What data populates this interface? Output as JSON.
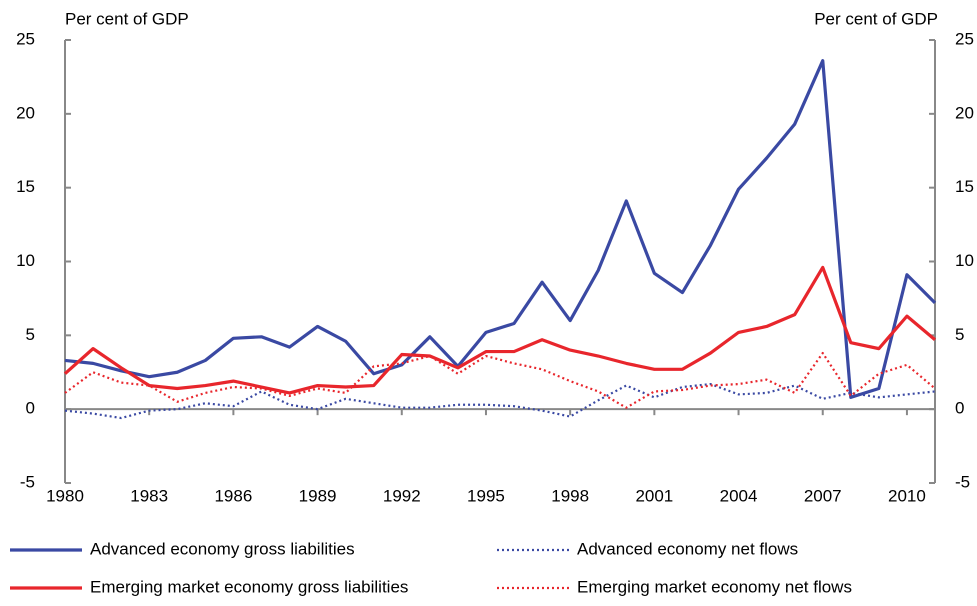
{
  "chart_data": {
    "type": "line",
    "y_label": "Per cent of GDP",
    "y2_label": "Per cent of GDP",
    "x": [
      1980,
      1981,
      1982,
      1983,
      1984,
      1985,
      1986,
      1987,
      1988,
      1989,
      1990,
      1991,
      1992,
      1993,
      1994,
      1995,
      1996,
      1997,
      1998,
      1999,
      2000,
      2001,
      2002,
      2003,
      2004,
      2005,
      2006,
      2007,
      2008,
      2009,
      2010,
      2011
    ],
    "xlim": [
      1980,
      2011
    ],
    "xticks": [
      1980,
      1983,
      1986,
      1989,
      1992,
      1995,
      1998,
      2001,
      2004,
      2007,
      2010
    ],
    "ylim": [
      -5,
      25
    ],
    "yticks": [
      -5,
      0,
      5,
      10,
      15,
      20,
      25
    ],
    "y2lim": [
      -5,
      25
    ],
    "y2ticks": [
      -5,
      0,
      5,
      10,
      15,
      20,
      25
    ],
    "grid": false,
    "legend": "bottom",
    "series": [
      {
        "name": "Advanced economy gross liabilities",
        "color": "#3a49a3",
        "style": "solid",
        "values": [
          3.3,
          3.1,
          2.6,
          2.2,
          2.5,
          3.3,
          4.8,
          4.9,
          4.2,
          5.6,
          4.6,
          2.4,
          3.0,
          4.9,
          2.9,
          5.2,
          5.8,
          8.6,
          6.0,
          9.4,
          14.1,
          9.2,
          7.9,
          11.1,
          14.9,
          17.0,
          19.3,
          23.6,
          0.8,
          1.4,
          9.1,
          7.2
        ]
      },
      {
        "name": "Advanced economy net flows",
        "color": "#3a49a3",
        "style": "dotted",
        "values": [
          -0.1,
          -0.3,
          -0.6,
          -0.1,
          0.0,
          0.4,
          0.2,
          1.2,
          0.3,
          0.0,
          0.7,
          0.4,
          0.1,
          0.1,
          0.3,
          0.3,
          0.2,
          -0.1,
          -0.5,
          0.6,
          1.6,
          0.8,
          1.5,
          1.7,
          1.0,
          1.1,
          1.6,
          0.7,
          1.1,
          0.8,
          1.0,
          1.2
        ]
      },
      {
        "name": "Emerging market economy gross liabilities",
        "color": "#e8262c",
        "style": "solid",
        "values": [
          2.4,
          4.1,
          2.8,
          1.6,
          1.4,
          1.6,
          1.9,
          1.5,
          1.1,
          1.6,
          1.5,
          1.6,
          3.7,
          3.6,
          2.8,
          3.9,
          3.9,
          4.7,
          4.0,
          3.6,
          3.1,
          2.7,
          2.7,
          3.8,
          5.2,
          5.6,
          6.4,
          9.6,
          4.5,
          4.1,
          6.3,
          4.7
        ]
      },
      {
        "name": "Emerging market economy net flows",
        "color": "#e8262c",
        "style": "dotted",
        "values": [
          1.1,
          2.5,
          1.8,
          1.6,
          0.5,
          1.1,
          1.5,
          1.4,
          0.9,
          1.4,
          1.1,
          2.9,
          3.1,
          3.6,
          2.4,
          3.6,
          3.1,
          2.7,
          1.9,
          1.2,
          0.1,
          1.2,
          1.3,
          1.6,
          1.7,
          2.0,
          1.1,
          3.8,
          0.9,
          2.4,
          3.0,
          1.4
        ]
      }
    ]
  }
}
